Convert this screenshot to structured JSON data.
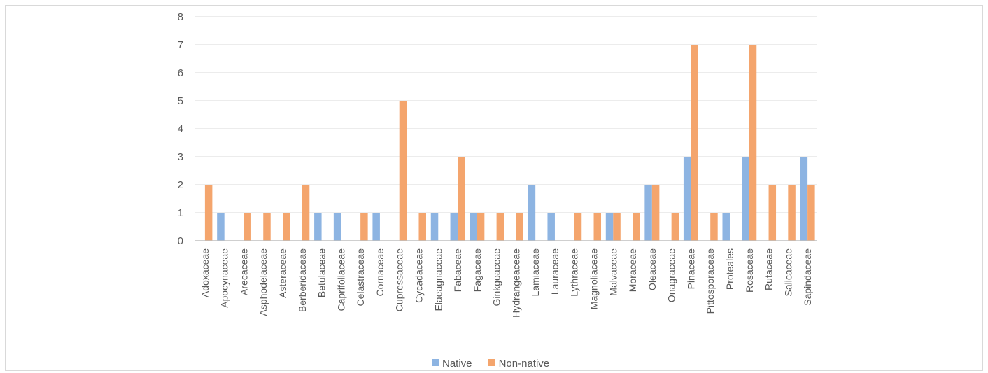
{
  "chart_data": {
    "type": "bar",
    "categories": [
      "Adoxaceae",
      "Apocynaceae",
      "Arecaceae",
      "Asphodelaceae",
      "Asteraceae",
      "Berberidaceae",
      "Betulaceae",
      "Caprifoliaceae",
      "Celastraceae",
      "Cornaceae",
      "Cupressaceae",
      "Cycadaceae",
      "Elaeagnaceae",
      "Fabaceae",
      "Fagaceae",
      "Ginkgoaceae",
      "Hydrangeaceae",
      "Lamiaceae",
      "Lauraceae",
      "Lythraceae",
      "Magnoliaceae",
      "Malvaceae",
      "Moraceae",
      "Oleaceae",
      "Onagraceae",
      "Pinaceae",
      "Pittosporaceae",
      "Proteales",
      "Rosaceae",
      "Rutaceae",
      "Salicaceae",
      "Sapindaceae"
    ],
    "series": [
      {
        "name": "Native",
        "color": "#8db4e2",
        "values": [
          0,
          1,
          0,
          0,
          0,
          0,
          1,
          1,
          0,
          1,
          0,
          0,
          1,
          1,
          1,
          0,
          0,
          2,
          1,
          0,
          0,
          1,
          0,
          2,
          0,
          3,
          0,
          1,
          3,
          0,
          0,
          3
        ]
      },
      {
        "name": "Non-native",
        "color": "#f4a56d",
        "values": [
          2,
          0,
          1,
          1,
          1,
          2,
          0,
          0,
          1,
          0,
          5,
          1,
          0,
          3,
          1,
          1,
          1,
          0,
          0,
          1,
          1,
          1,
          1,
          2,
          1,
          7,
          1,
          0,
          7,
          2,
          2,
          2
        ]
      }
    ],
    "ylim": [
      0,
      8
    ],
    "yticks": [
      "0",
      "1",
      "2",
      "3",
      "4",
      "5",
      "6",
      "7",
      "8"
    ],
    "grid": true,
    "legend": "bottom-center"
  }
}
